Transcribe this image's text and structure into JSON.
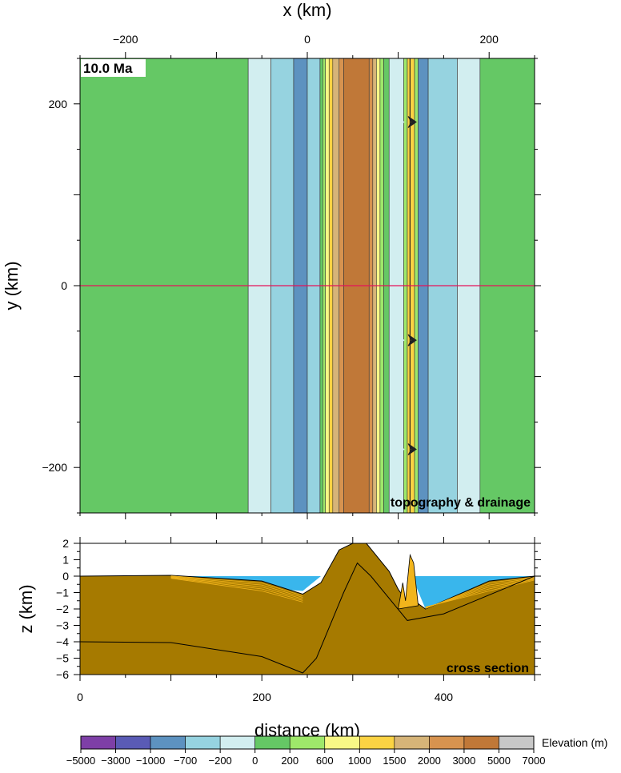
{
  "chart_data": [
    {
      "type": "heatmap",
      "xlabel": "x (km)",
      "ylabel": "y (km)",
      "time_label": "10.0 Ma",
      "panel_label": "topography & drainage",
      "xlim": [
        -250,
        250
      ],
      "ylim": [
        -250,
        250
      ],
      "x_ticks": [
        -200,
        0,
        200
      ],
      "x_tick_labels": [
        "−200",
        "0",
        "200"
      ],
      "y_ticks": [
        -200,
        0,
        200
      ],
      "y_tick_labels": [
        "−200",
        "0",
        "200"
      ],
      "section_line_y": 0,
      "bands": [
        {
          "x0": -250,
          "x1": -65,
          "elev": 100
        },
        {
          "x0": -65,
          "x1": -40,
          "elev": -100
        },
        {
          "x0": -40,
          "x1": -15,
          "elev": -400
        },
        {
          "x0": -15,
          "x1": 0,
          "elev": -1000
        },
        {
          "x0": 0,
          "x1": 14,
          "elev": -400
        },
        {
          "x0": 14,
          "x1": 17,
          "elev": 150
        },
        {
          "x0": 17,
          "x1": 20,
          "elev": 400
        },
        {
          "x0": 20,
          "x1": 24,
          "elev": 800
        },
        {
          "x0": 24,
          "x1": 28,
          "elev": 1200
        },
        {
          "x0": 28,
          "x1": 35,
          "elev": 1800
        },
        {
          "x0": 35,
          "x1": 40,
          "elev": 2500
        },
        {
          "x0": 40,
          "x1": 68,
          "elev": 3500
        },
        {
          "x0": 68,
          "x1": 72,
          "elev": 2500
        },
        {
          "x0": 72,
          "x1": 76,
          "elev": 1800
        },
        {
          "x0": 76,
          "x1": 80,
          "elev": 800
        },
        {
          "x0": 80,
          "x1": 84,
          "elev": 400
        },
        {
          "x0": 84,
          "x1": 90,
          "elev": 100
        },
        {
          "x0": 90,
          "x1": 106,
          "elev": -100
        },
        {
          "x0": 106,
          "x1": 110,
          "elev": 400
        },
        {
          "x0": 110,
          "x1": 118,
          "elev": 1200
        },
        {
          "x0": 118,
          "x1": 122,
          "elev": 200
        },
        {
          "x0": 122,
          "x1": 133,
          "elev": -1000
        },
        {
          "x0": 133,
          "x1": 165,
          "elev": -400
        },
        {
          "x0": 165,
          "x1": 190,
          "elev": -100
        },
        {
          "x0": 190,
          "x1": 250,
          "elev": 100
        }
      ]
    },
    {
      "type": "area",
      "xlabel": "distance (km)",
      "ylabel": "z (km)",
      "panel_label": "cross section",
      "xlim": [
        0,
        500
      ],
      "ylim": [
        -6,
        2
      ],
      "x_ticks": [
        0,
        200,
        400
      ],
      "x_tick_labels": [
        "0",
        "200",
        "400"
      ],
      "y_ticks": [
        2,
        1,
        0,
        -1,
        -2,
        -3,
        -4,
        -5,
        -6
      ],
      "y_tick_labels": [
        "2",
        "1",
        "0",
        "−1",
        "−2",
        "−3",
        "−4",
        "−5",
        "−6"
      ],
      "water": [
        [
          0,
          0
        ],
        [
          245,
          -0.9
        ],
        [
          265,
          0
        ],
        [
          365,
          0
        ],
        [
          380,
          -2
        ],
        [
          500,
          0
        ]
      ],
      "surface": [
        [
          0,
          0
        ],
        [
          100,
          0.05
        ],
        [
          200,
          -0.3
        ],
        [
          245,
          -1.1
        ],
        [
          265,
          -0.4
        ],
        [
          285,
          1.6
        ],
        [
          300,
          2
        ],
        [
          315,
          2
        ],
        [
          340,
          0.3
        ],
        [
          350,
          -0.8
        ],
        [
          355,
          -1.2
        ],
        [
          360,
          -1.5
        ],
        [
          362,
          -1.3
        ],
        [
          365,
          -1.1
        ],
        [
          370,
          -1.6
        ],
        [
          380,
          -2
        ],
        [
          450,
          -0.3
        ],
        [
          500,
          0
        ]
      ],
      "horizons": [
        [
          [
            0,
            -4
          ],
          [
            100,
            -4.05
          ],
          [
            200,
            -4.9
          ],
          [
            245,
            -5.9
          ]
        ],
        [
          [
            245,
            -5.9
          ],
          [
            260,
            -5
          ],
          [
            290,
            -1
          ],
          [
            305,
            0.8
          ],
          [
            320,
            0
          ],
          [
            360,
            -2.7
          ],
          [
            400,
            -2.3
          ],
          [
            500,
            0
          ]
        ]
      ],
      "spikes": [
        [
          350,
          -2
        ],
        [
          355,
          -0.4
        ],
        [
          358,
          -1.5
        ],
        [
          363,
          1.3
        ],
        [
          367,
          0.8
        ],
        [
          372,
          -1.8
        ]
      ]
    }
  ],
  "colorbar": {
    "label": "Elevation (m)",
    "tick_labels": [
      "−5000",
      "−3000",
      "−1000",
      "−700",
      "−200",
      "0",
      "200",
      "600",
      "1000",
      "1500",
      "2000",
      "3000",
      "5000",
      "7000"
    ],
    "values": [
      -5000,
      -3000,
      -1000,
      -700,
      -200,
      0,
      200,
      600,
      1000,
      1500,
      2000,
      3000,
      5000,
      7000
    ],
    "colors": [
      "#7e3fa7",
      "#5a5bb5",
      "#5d92c0",
      "#96d3e0",
      "#d2eef0",
      "#65c865",
      "#9ee86a",
      "#f8f886",
      "#fbd343",
      "#d6b478",
      "#d7934f",
      "#c07838",
      "#c8c8c8"
    ]
  },
  "colors": {
    "sediment": "#a67a00",
    "water": "#39b6ec",
    "section_line": "#e5125a"
  }
}
